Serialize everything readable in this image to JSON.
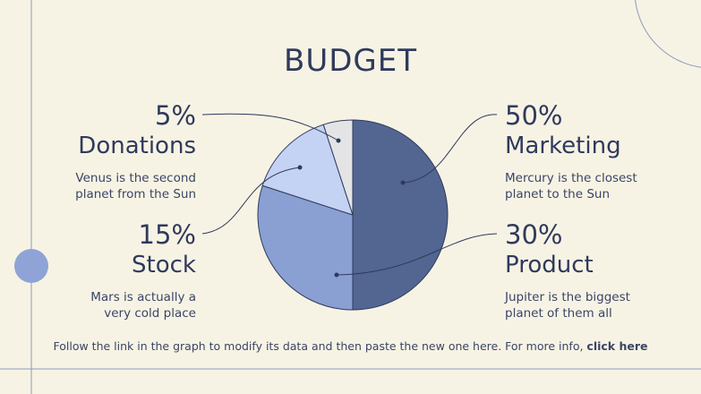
{
  "title": "BUDGET",
  "colors": {
    "background": "#f7f3e4",
    "text": "#2f3a5c",
    "line": "#8d98bd",
    "dot": "#8fa3d6"
  },
  "chart_data": {
    "type": "pie",
    "title": "BUDGET",
    "slices": [
      {
        "label": "Marketing",
        "value": 50,
        "color": "#536591"
      },
      {
        "label": "Product",
        "value": 30,
        "color": "#8a9fd2"
      },
      {
        "label": "Stock",
        "value": 15,
        "color": "#c4d2f4"
      },
      {
        "label": "Donations",
        "value": 5,
        "color": "#e4e4e6"
      }
    ]
  },
  "labels": {
    "donations": {
      "pct": "5%",
      "name": "Donations",
      "desc1": "Venus is the second",
      "desc2": "planet from the Sun"
    },
    "stock": {
      "pct": "15%",
      "name": "Stock",
      "desc1": "Mars is actually a",
      "desc2": "very cold place"
    },
    "marketing": {
      "pct": "50%",
      "name": "Marketing",
      "desc1": "Mercury is the closest",
      "desc2": "planet to the Sun"
    },
    "product": {
      "pct": "30%",
      "name": "Product",
      "desc1": "Jupiter is the biggest",
      "desc2": "planet of them all"
    }
  },
  "footer": {
    "text": "Follow the link in the graph to modify its data and then paste the new one here. For more info, ",
    "link": "click here"
  }
}
